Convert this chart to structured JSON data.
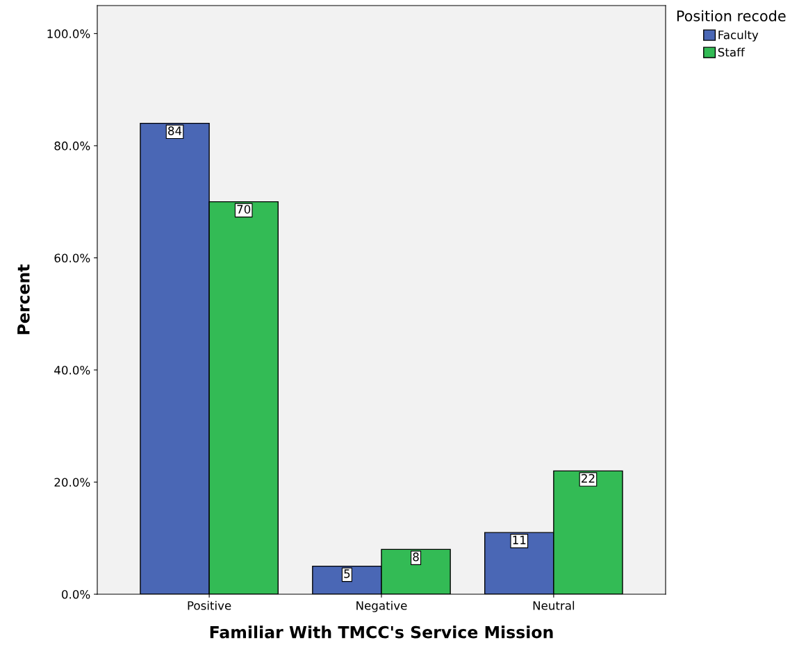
{
  "chart_data": {
    "type": "bar",
    "xlabel": "Familiar With TMCC's Service Mission",
    "ylabel": "Percent",
    "legend_title": "Position recode",
    "categories": [
      "Positive",
      "Negative",
      "Neutral"
    ],
    "series": [
      {
        "name": "Faculty",
        "color": "#4a67b5",
        "values": [
          84,
          5,
          11
        ]
      },
      {
        "name": "Staff",
        "color": "#33bb55",
        "values": [
          70,
          8,
          22
        ]
      }
    ],
    "ylim": [
      0,
      105
    ],
    "yticks": [
      {
        "value": 0,
        "label": "0.0%"
      },
      {
        "value": 20,
        "label": "20.0%"
      },
      {
        "value": 40,
        "label": "40.0%"
      },
      {
        "value": 60,
        "label": "60.0%"
      },
      {
        "value": 80,
        "label": "80.0%"
      },
      {
        "value": 100,
        "label": "100.0%"
      }
    ],
    "data_labels": true,
    "grid": false,
    "legend": "top right"
  }
}
